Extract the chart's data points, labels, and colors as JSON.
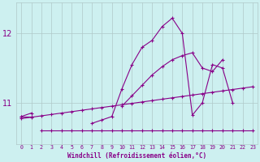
{
  "xlabel": "Windchill (Refroidissement éolien,°C)",
  "bg_color": "#cdf0f0",
  "grid_color": "#b0c8c8",
  "line_color": "#880088",
  "x_values": [
    0,
    1,
    2,
    3,
    4,
    5,
    6,
    7,
    8,
    9,
    10,
    11,
    12,
    13,
    14,
    15,
    16,
    17,
    18,
    19,
    20,
    21,
    22,
    23
  ],
  "line1": [
    10.8,
    10.8,
    null,
    null,
    null,
    null,
    null,
    10.7,
    10.75,
    10.8,
    11.2,
    11.55,
    11.8,
    11.9,
    12.1,
    12.22,
    12.0,
    10.82,
    11.0,
    11.55,
    11.5,
    11.0,
    null,
    null
  ],
  "line2": [
    10.8,
    10.85,
    null,
    null,
    null,
    null,
    null,
    null,
    null,
    null,
    10.95,
    11.1,
    11.25,
    11.4,
    11.52,
    11.62,
    11.68,
    11.72,
    11.5,
    11.45,
    11.62,
    null,
    null,
    null
  ],
  "line3": [
    null,
    null,
    10.6,
    10.6,
    10.6,
    10.6,
    10.6,
    10.6,
    10.6,
    10.6,
    10.6,
    10.6,
    10.6,
    10.6,
    10.6,
    10.6,
    10.6,
    10.6,
    10.6,
    10.6,
    10.6,
    10.6,
    10.6,
    10.6
  ],
  "line4": [
    10.77,
    10.79,
    10.81,
    10.83,
    10.85,
    10.87,
    10.89,
    10.91,
    10.93,
    10.95,
    10.97,
    10.99,
    11.01,
    11.03,
    11.05,
    11.07,
    11.09,
    11.11,
    11.13,
    11.15,
    11.17,
    11.19,
    11.21,
    11.23
  ],
  "ylim": [
    10.4,
    12.45
  ],
  "yticks": [
    11,
    12
  ],
  "xlim": [
    -0.5,
    23.5
  ]
}
